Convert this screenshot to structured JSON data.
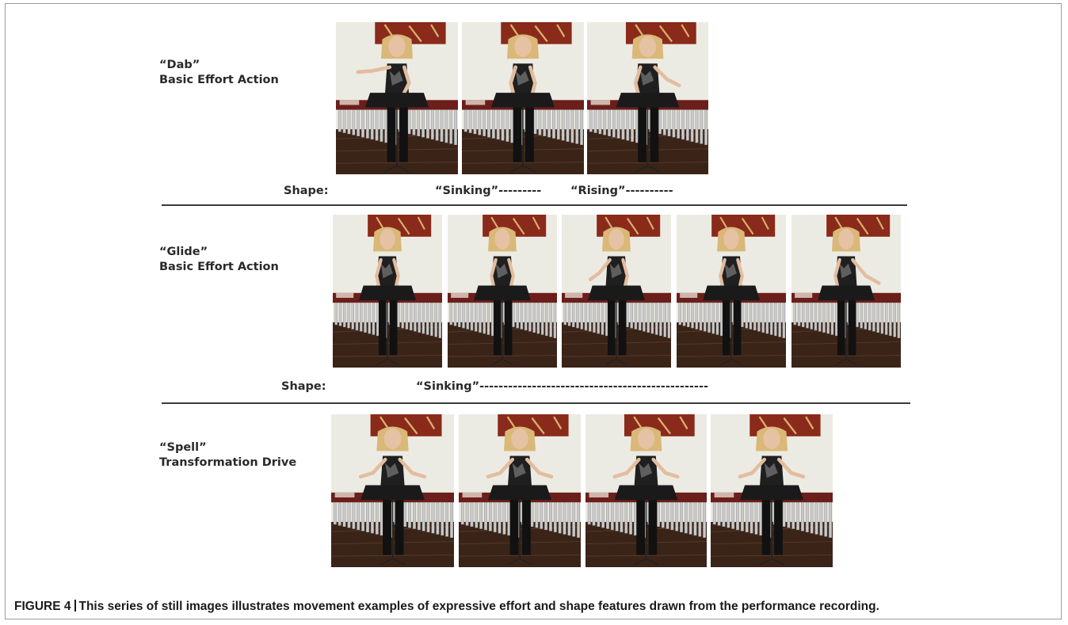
{
  "rows": [
    {
      "title": "“Dab”",
      "subtitle": "Basic Effort Action",
      "shape_label": "Shape:",
      "shape_values": [
        "“Sinking”---------",
        "“Rising”----------"
      ],
      "frames": [
        {
          "pose": "arm-left-high"
        },
        {
          "pose": "arms-down"
        },
        {
          "pose": "arm-right-mid"
        }
      ]
    },
    {
      "title": "“Glide”",
      "subtitle": "Basic Effort Action",
      "shape_label": "Shape:",
      "shape_values": [
        "“Sinking”------------------------------------------------"
      ],
      "frames": [
        {
          "pose": "arms-down"
        },
        {
          "pose": "arms-down"
        },
        {
          "pose": "arm-left-mid"
        },
        {
          "pose": "arms-down"
        },
        {
          "pose": "arm-right-low"
        }
      ]
    },
    {
      "title": "“Spell”",
      "subtitle": "Transformation Drive",
      "shape_label": "",
      "shape_values": [],
      "frames": [
        {
          "pose": "arms-wide"
        },
        {
          "pose": "arms-wide"
        },
        {
          "pose": "arms-wide"
        },
        {
          "pose": "arms-wide"
        }
      ]
    }
  ],
  "caption": {
    "figure": "FIGURE 4",
    "text": "This series of still images illustrates movement examples of expressive effort and shape features drawn from the performance recording."
  },
  "colors": {
    "wall": "#ecebe3",
    "painting": "#8a2a1a",
    "floor": "#3a2418",
    "marimba_frame": "#6b1e1a",
    "resonator": "#c9c9c9",
    "stand": "#1a1a1a"
  }
}
